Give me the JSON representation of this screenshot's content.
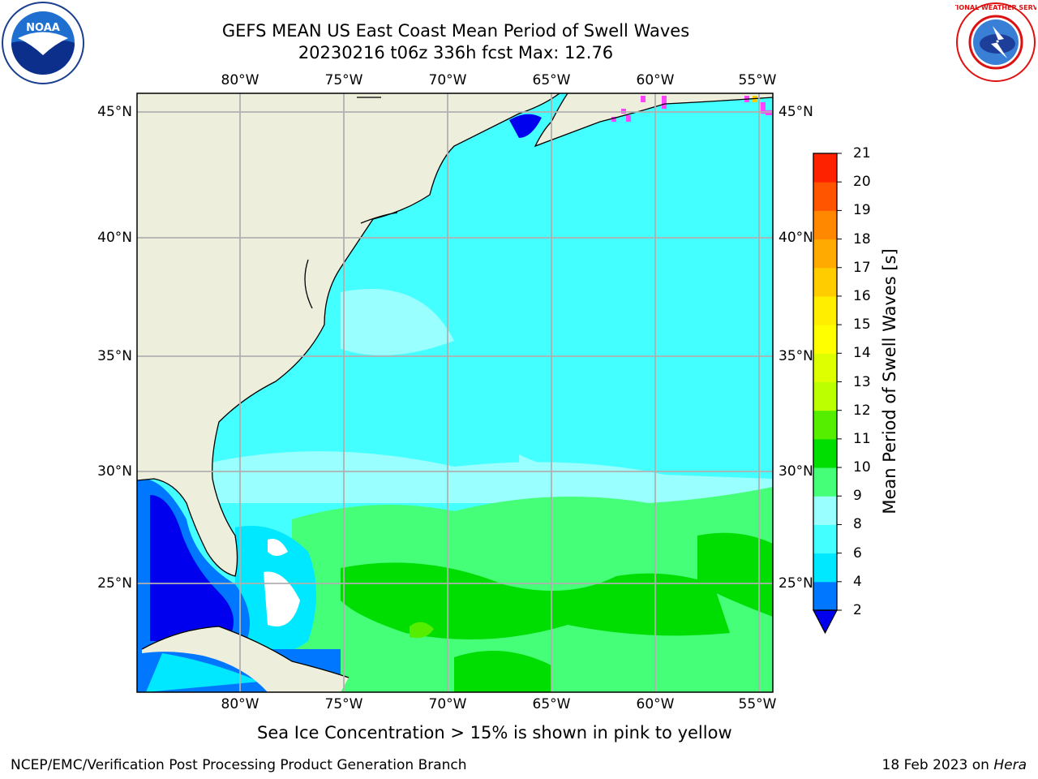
{
  "title": {
    "line1": "GEFS MEAN US East Coast Mean Period of Swell Waves",
    "line2": "20230216 t06z 336h fcst   Max: 12.76"
  },
  "map": {
    "lon_labels": [
      "80°W",
      "75°W",
      "70°W",
      "65°W",
      "60°W",
      "55°W"
    ],
    "lat_labels": [
      "45°N",
      "40°N",
      "35°N",
      "30°N",
      "25°N"
    ],
    "lon_range": [
      "85°W",
      "54.3°W"
    ],
    "lat_range": [
      "20.5°N",
      "45.8°N"
    ],
    "land_color": "#eeeedd",
    "grid": true
  },
  "colorbar": {
    "label": "Mean Period of Swell Waves [s]",
    "ticks": [
      "2",
      "4",
      "6",
      "8",
      "9",
      "10",
      "11",
      "12",
      "13",
      "14",
      "15",
      "16",
      "17",
      "18",
      "19",
      "20",
      "21"
    ],
    "colors": [
      "#0077ff",
      "#00e8ff",
      "#44ffff",
      "#99ffff",
      "#44ff77",
      "#00dd00",
      "#55ee00",
      "#bbff00",
      "#ddff00",
      "#ffff00",
      "#ffee00",
      "#ffcc00",
      "#ffaa00",
      "#ff8800",
      "#ff5500",
      "#ff2200"
    ],
    "under_color": "#0000ee"
  },
  "notes": {
    "ice": "Sea Ice Concentration > 15% is shown in pink to yellow"
  },
  "footer": {
    "left": "NCEP/EMC/Verification Post Processing Product Generation Branch",
    "date": "18 Feb 2023 on ",
    "machine": "Hera"
  },
  "logos": {
    "noaa": "NOAA",
    "nws": "NATIONAL WEATHER SERVICE"
  }
}
